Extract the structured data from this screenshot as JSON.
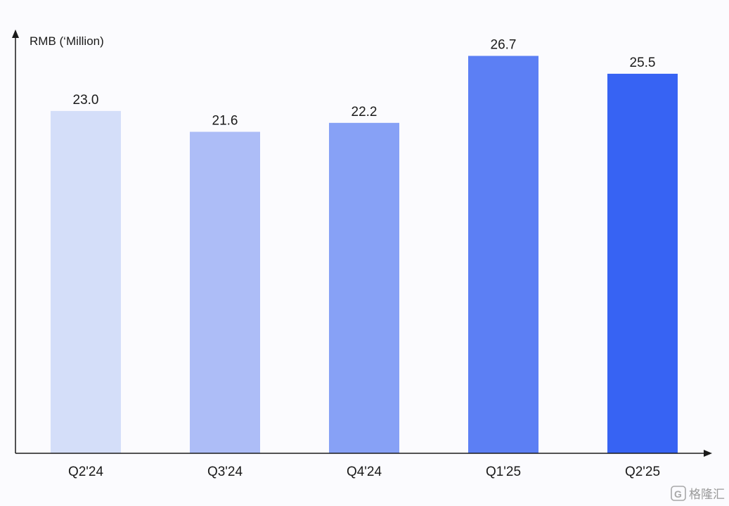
{
  "chart_data": {
    "type": "bar",
    "categories": [
      "Q2'24",
      "Q3'24",
      "Q4'24",
      "Q1'25",
      "Q2'25"
    ],
    "values": [
      23.0,
      21.6,
      22.2,
      26.7,
      25.5
    ],
    "value_labels": [
      "23.0",
      "21.6",
      "22.2",
      "26.7",
      "25.5"
    ],
    "colors": [
      "#d4def9",
      "#adbdf7",
      "#87a1f6",
      "#5c7ff4",
      "#3763f3"
    ],
    "ylabel": "RMB (‘Million)",
    "ylim": [
      0,
      28
    ],
    "grid": false,
    "legend": "none"
  },
  "watermark": {
    "text": "格隆汇",
    "icon": "g-logo-icon"
  }
}
